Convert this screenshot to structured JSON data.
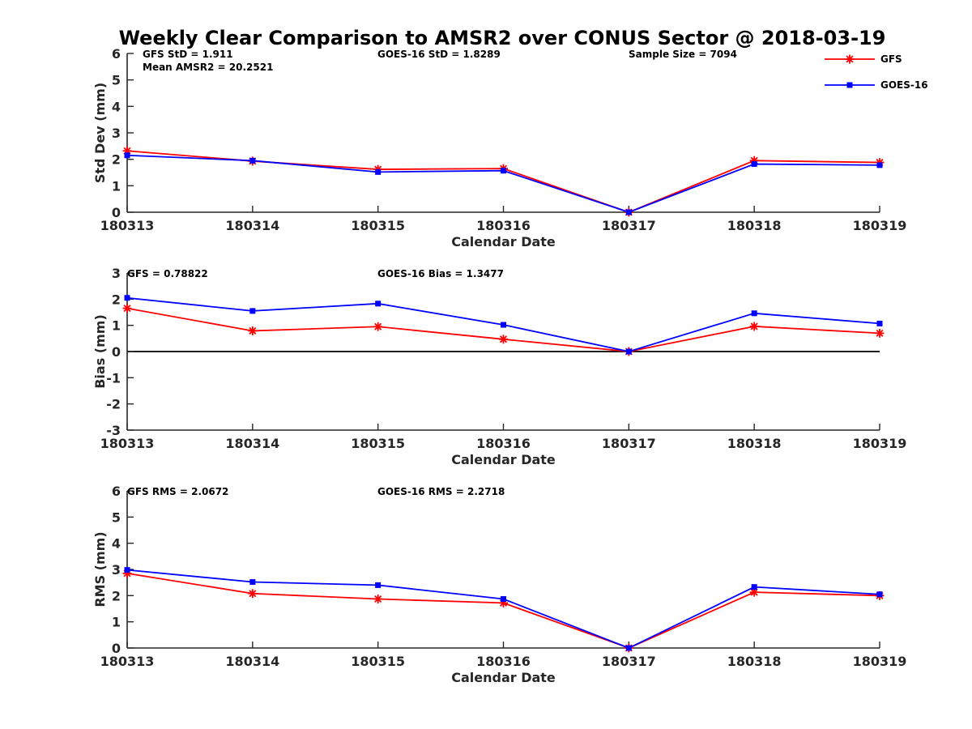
{
  "chart_data": [
    {
      "type": "line",
      "title": "Weekly Clear Comparison to AMSR2 over CONUS Sector @ 2018-03-19",
      "xlabel": "Calendar Date",
      "ylabel": "Std Dev (mm)",
      "categories": [
        "180313",
        "180314",
        "180315",
        "180316",
        "180317",
        "180318",
        "180319"
      ],
      "ylim": [
        0,
        6
      ],
      "yticks": [
        0,
        1,
        2,
        3,
        4,
        5,
        6
      ],
      "zero_line": false,
      "series": [
        {
          "name": "GFS",
          "color": "#ff0000",
          "marker": "asterisk",
          "values": [
            2.32,
            1.93,
            1.62,
            1.65,
            0.0,
            1.95,
            1.88
          ]
        },
        {
          "name": "GOES-16",
          "color": "#0000ff",
          "marker": "square",
          "values": [
            2.15,
            1.95,
            1.52,
            1.57,
            0.0,
            1.82,
            1.78
          ]
        }
      ],
      "annotations": [
        {
          "text": "GFS StD = 1.911",
          "col": 0,
          "row": 0
        },
        {
          "text": "Mean AMSR2 = 20.2521",
          "col": 0,
          "row": 1
        },
        {
          "text": "GOES-16 StD = 1.8289",
          "col": 1,
          "row": 0
        },
        {
          "text": "Sample Size = 7094",
          "col": 2,
          "row": 0
        }
      ],
      "legend": {
        "placement": "top-right-outside",
        "entries": [
          "GFS",
          "GOES-16"
        ]
      }
    },
    {
      "type": "line",
      "xlabel": "Calendar Date",
      "ylabel": "Bias (mm)",
      "categories": [
        "180313",
        "180314",
        "180315",
        "180316",
        "180317",
        "180318",
        "180319"
      ],
      "ylim": [
        -3,
        3
      ],
      "yticks": [
        -3,
        -2,
        -1,
        0,
        1,
        2,
        3
      ],
      "zero_line": true,
      "series": [
        {
          "name": "GFS",
          "color": "#ff0000",
          "marker": "asterisk",
          "values": [
            1.65,
            0.79,
            0.95,
            0.47,
            0.0,
            0.96,
            0.7
          ]
        },
        {
          "name": "GOES-16",
          "color": "#0000ff",
          "marker": "square",
          "values": [
            2.05,
            1.55,
            1.83,
            1.02,
            0.0,
            1.46,
            1.07
          ]
        }
      ],
      "annotations": [
        {
          "text": "GFS = 0.78822",
          "col": 0,
          "row": 0
        },
        {
          "text": "GOES-16 Bias  = 1.3477",
          "col": 1,
          "row": 0
        }
      ]
    },
    {
      "type": "line",
      "xlabel": "Calendar Date",
      "ylabel": "RMS (mm)",
      "categories": [
        "180313",
        "180314",
        "180315",
        "180316",
        "180317",
        "180318",
        "180319"
      ],
      "ylim": [
        0,
        6
      ],
      "yticks": [
        0,
        1,
        2,
        3,
        4,
        5,
        6
      ],
      "zero_line": false,
      "series": [
        {
          "name": "GFS",
          "color": "#ff0000",
          "marker": "asterisk",
          "values": [
            2.85,
            2.08,
            1.87,
            1.72,
            0.0,
            2.13,
            2.0
          ]
        },
        {
          "name": "GOES-16",
          "color": "#0000ff",
          "marker": "square",
          "values": [
            2.98,
            2.52,
            2.4,
            1.87,
            0.0,
            2.33,
            2.05
          ]
        }
      ],
      "annotations": [
        {
          "text": "GFS RMS = 2.0672",
          "col": 0,
          "row": 0
        },
        {
          "text": "GOES-16 RMS = 2.2718",
          "col": 1,
          "row": 0
        }
      ]
    }
  ]
}
